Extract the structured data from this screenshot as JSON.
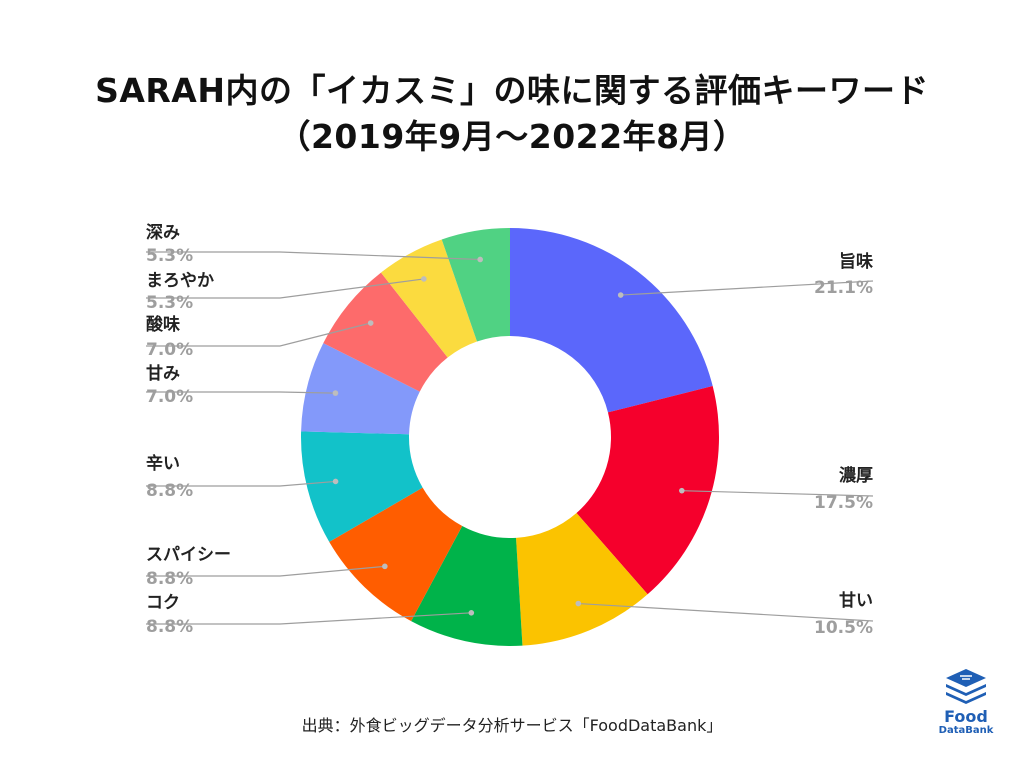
{
  "title_line1": "SARAH内の「イカスミ」の味に関する評価キーワード",
  "title_line2": "（2019年9月～2022年8月）",
  "source": "出典：外食ビッグデータ分析サービス「FoodDataBank」",
  "logo": {
    "line1": "Food",
    "line2": "DataBank",
    "icon": "food-databank-logo-icon",
    "color": "#1f5fb5"
  },
  "chart_data": {
    "type": "pie",
    "donut": true,
    "legend": "none",
    "slices": [
      {
        "label": "旨味",
        "value": 21.1,
        "value_label": "21.1%",
        "color": "#5b67fb"
      },
      {
        "label": "濃厚",
        "value": 17.5,
        "value_label": "17.5%",
        "color": "#f5002c"
      },
      {
        "label": "甘い",
        "value": 10.5,
        "value_label": "10.5%",
        "color": "#fbc300"
      },
      {
        "label": "コク",
        "value": 8.8,
        "value_label": "8.8%",
        "color": "#00b34a"
      },
      {
        "label": "スパイシー",
        "value": 8.8,
        "value_label": "8.8%",
        "color": "#ff5d00"
      },
      {
        "label": "辛い",
        "value": 8.8,
        "value_label": "8.8%",
        "color": "#12c2c9"
      },
      {
        "label": "甘み",
        "value": 7.0,
        "value_label": "7.0%",
        "color": "#8399fa"
      },
      {
        "label": "酸味",
        "value": 7.0,
        "value_label": "7.0%",
        "color": "#fd6b6b"
      },
      {
        "label": "まろやか",
        "value": 5.3,
        "value_label": "5.3%",
        "color": "#fbdb3f"
      },
      {
        "label": "深み",
        "value": 5.3,
        "value_label": "5.3%",
        "color": "#50d283"
      }
    ],
    "label_color": "#222222",
    "value_color": "#9e9e9e",
    "leader_color": "#9e9e9e"
  }
}
